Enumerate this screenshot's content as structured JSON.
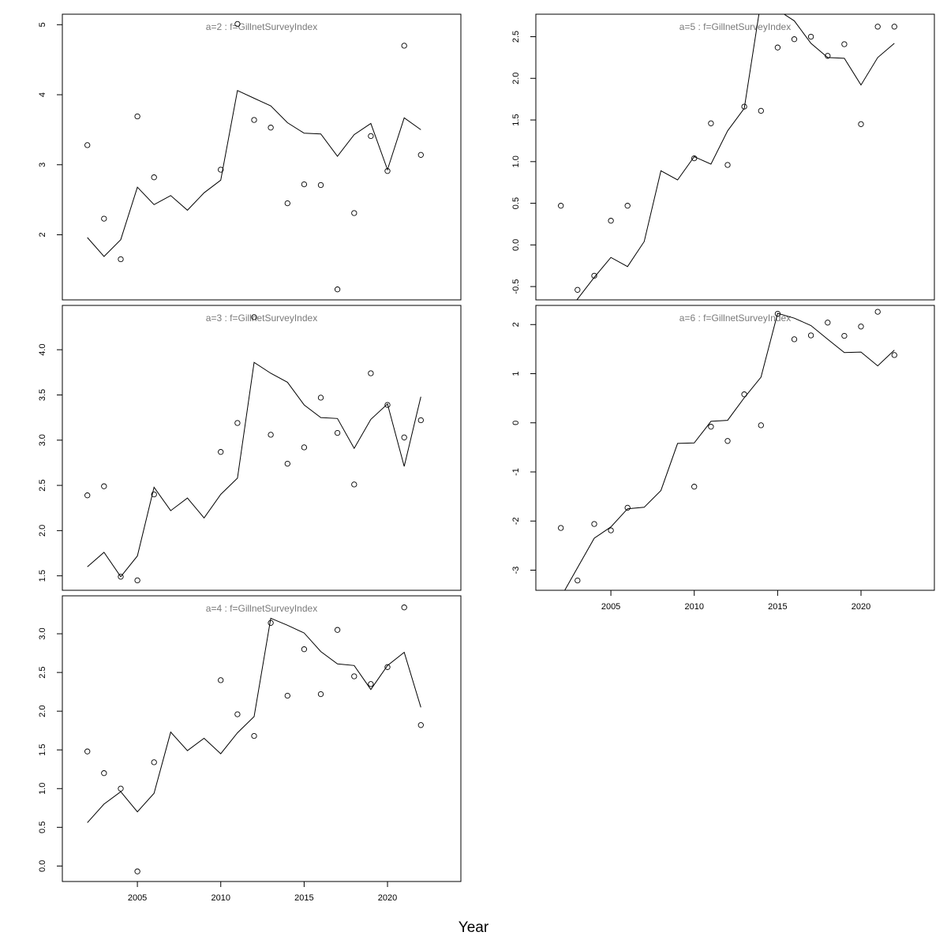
{
  "figure": {
    "xlabel": "Year"
  },
  "chart_data": [
    {
      "type": "scatter",
      "title": "a=2  :  f=GillnetSurveyIndex",
      "x": [
        2002,
        2003,
        2004,
        2005,
        2006,
        2007,
        2008,
        2009,
        2010,
        2011,
        2012,
        2013,
        2014,
        2015,
        2016,
        2017,
        2018,
        2019,
        2020,
        2021,
        2022
      ],
      "observed": [
        3.28,
        2.23,
        1.65,
        3.69,
        2.82,
        null,
        null,
        null,
        2.93,
        5.01,
        3.64,
        3.53,
        2.45,
        2.72,
        2.71,
        1.22,
        2.31,
        3.41,
        2.91,
        4.7,
        3.14
      ],
      "fitted": [
        1.96,
        1.69,
        1.93,
        2.68,
        2.43,
        2.56,
        2.35,
        2.6,
        2.78,
        4.06,
        3.95,
        3.84,
        3.6,
        3.45,
        3.44,
        3.12,
        3.43,
        3.59,
        2.93,
        3.67,
        3.5
      ],
      "xlim": [
        2000.5,
        2024.4
      ],
      "ylim": [
        1.07,
        5.15
      ],
      "yticks": [
        2,
        3,
        4,
        5
      ],
      "ytick_labels": [
        "2",
        "3",
        "4",
        "5"
      ],
      "xticks": [
        2005,
        2010,
        2015,
        2020
      ],
      "xtick_labels": [
        "2005",
        "2010",
        "2015",
        "2020"
      ],
      "show_xaxis": false
    },
    {
      "type": "scatter",
      "title": "a=3  :  f=GillnetSurveyIndex",
      "x": [
        2002,
        2003,
        2004,
        2005,
        2006,
        2007,
        2008,
        2009,
        2010,
        2011,
        2012,
        2013,
        2014,
        2015,
        2016,
        2017,
        2018,
        2019,
        2020,
        2021,
        2022
      ],
      "observed": [
        2.39,
        2.49,
        1.49,
        1.45,
        2.4,
        null,
        null,
        null,
        2.87,
        3.19,
        4.36,
        3.06,
        2.74,
        2.92,
        3.47,
        3.08,
        2.51,
        3.74,
        3.39,
        3.03,
        3.22
      ],
      "fitted": [
        1.6,
        1.76,
        1.49,
        1.72,
        2.48,
        2.22,
        2.36,
        2.14,
        2.4,
        2.58,
        3.86,
        3.74,
        3.64,
        3.39,
        3.25,
        3.24,
        2.91,
        3.23,
        3.4,
        2.71,
        3.48
      ],
      "xlim": [
        2000.5,
        2024.4
      ],
      "ylim": [
        1.34,
        4.49
      ],
      "yticks": [
        1.5,
        2.0,
        2.5,
        3.0,
        3.5,
        4.0
      ],
      "ytick_labels": [
        "1.5",
        "2.0",
        "2.5",
        "3.0",
        "3.5",
        "4.0"
      ],
      "xticks": [
        2005,
        2010,
        2015,
        2020
      ],
      "xtick_labels": [
        "2005",
        "2010",
        "2015",
        "2020"
      ],
      "show_xaxis": false
    },
    {
      "type": "scatter",
      "title": "a=4  :  f=GillnetSurveyIndex",
      "x": [
        2002,
        2003,
        2004,
        2005,
        2006,
        2007,
        2008,
        2009,
        2010,
        2011,
        2012,
        2013,
        2014,
        2015,
        2016,
        2017,
        2018,
        2019,
        2020,
        2021,
        2022
      ],
      "observed": [
        1.48,
        1.2,
        1.0,
        -0.07,
        1.34,
        null,
        null,
        null,
        2.4,
        1.96,
        1.68,
        3.14,
        2.2,
        2.8,
        2.22,
        3.05,
        2.45,
        2.35,
        2.57,
        3.34,
        1.82
      ],
      "fitted": [
        0.56,
        0.8,
        0.96,
        0.7,
        0.94,
        1.73,
        1.49,
        1.65,
        1.45,
        1.72,
        1.93,
        3.2,
        3.11,
        3.01,
        2.77,
        2.61,
        2.59,
        2.28,
        2.59,
        2.76,
        2.05
      ],
      "xlim": [
        2000.5,
        2024.4
      ],
      "ylim": [
        -0.2,
        3.49
      ],
      "yticks": [
        0.0,
        0.5,
        1.0,
        1.5,
        2.0,
        2.5,
        3.0
      ],
      "ytick_labels": [
        "0.0",
        "0.5",
        "1.0",
        "1.5",
        "2.0",
        "2.5",
        "3.0"
      ],
      "xticks": [
        2005,
        2010,
        2015,
        2020
      ],
      "xtick_labels": [
        "2005",
        "2010",
        "2015",
        "2020"
      ],
      "show_xaxis": true
    },
    {
      "type": "scatter",
      "title": "a=5  :  f=GillnetSurveyIndex",
      "x": [
        2002,
        2003,
        2004,
        2005,
        2006,
        2007,
        2008,
        2009,
        2010,
        2011,
        2012,
        2013,
        2014,
        2015,
        2016,
        2017,
        2018,
        2019,
        2020,
        2021,
        2022
      ],
      "observed": [
        0.47,
        -0.54,
        -0.37,
        0.29,
        0.47,
        null,
        null,
        null,
        1.04,
        1.46,
        0.96,
        1.66,
        1.61,
        2.37,
        2.47,
        2.5,
        2.27,
        2.41,
        1.45,
        2.62,
        2.62
      ],
      "fitted": [
        -0.92,
        -0.65,
        -0.39,
        -0.15,
        -0.26,
        0.04,
        0.89,
        0.78,
        1.06,
        0.97,
        1.37,
        1.64,
        2.93,
        2.82,
        2.69,
        2.42,
        2.25,
        2.24,
        1.92,
        2.25,
        2.42
      ],
      "xlim": [
        2000.5,
        2024.4
      ],
      "ylim": [
        -0.66,
        2.77
      ],
      "yticks": [
        -0.5,
        0.0,
        0.5,
        1.0,
        1.5,
        2.0,
        2.5
      ],
      "ytick_labels": [
        "-0.5",
        "0.0",
        "0.5",
        "1.0",
        "1.5",
        "2.0",
        "2.5"
      ],
      "xticks": [
        2005,
        2010,
        2015,
        2020
      ],
      "xtick_labels": [
        "2005",
        "2010",
        "2015",
        "2020"
      ],
      "show_xaxis": false
    },
    {
      "type": "scatter",
      "title": "a=6  :  f=GillnetSurveyIndex",
      "x": [
        2002,
        2003,
        2004,
        2005,
        2006,
        2007,
        2008,
        2009,
        2010,
        2011,
        2012,
        2013,
        2014,
        2015,
        2016,
        2017,
        2018,
        2019,
        2020,
        2021,
        2022
      ],
      "observed": [
        -2.14,
        -3.21,
        -2.06,
        -2.19,
        -1.73,
        null,
        null,
        null,
        -1.3,
        -0.08,
        -0.37,
        0.58,
        -0.05,
        2.22,
        1.7,
        1.78,
        2.04,
        1.77,
        1.96,
        2.26,
        1.38
      ],
      "fitted": [
        -3.55,
        -2.95,
        -2.35,
        -2.12,
        -1.75,
        -1.72,
        -1.38,
        -0.42,
        -0.41,
        0.03,
        0.05,
        0.51,
        0.93,
        2.23,
        2.13,
        1.98,
        1.7,
        1.43,
        1.44,
        1.16,
        1.48
      ],
      "xlim": [
        2000.5,
        2024.4
      ],
      "ylim": [
        -3.41,
        2.39
      ],
      "yticks": [
        -3,
        -2,
        -1,
        0,
        1,
        2
      ],
      "ytick_labels": [
        "-3",
        "-2",
        "-1",
        "0",
        "1",
        "2"
      ],
      "xticks": [
        2005,
        2010,
        2015,
        2020
      ],
      "xtick_labels": [
        "2005",
        "2010",
        "2015",
        "2020"
      ],
      "show_xaxis": true
    }
  ]
}
